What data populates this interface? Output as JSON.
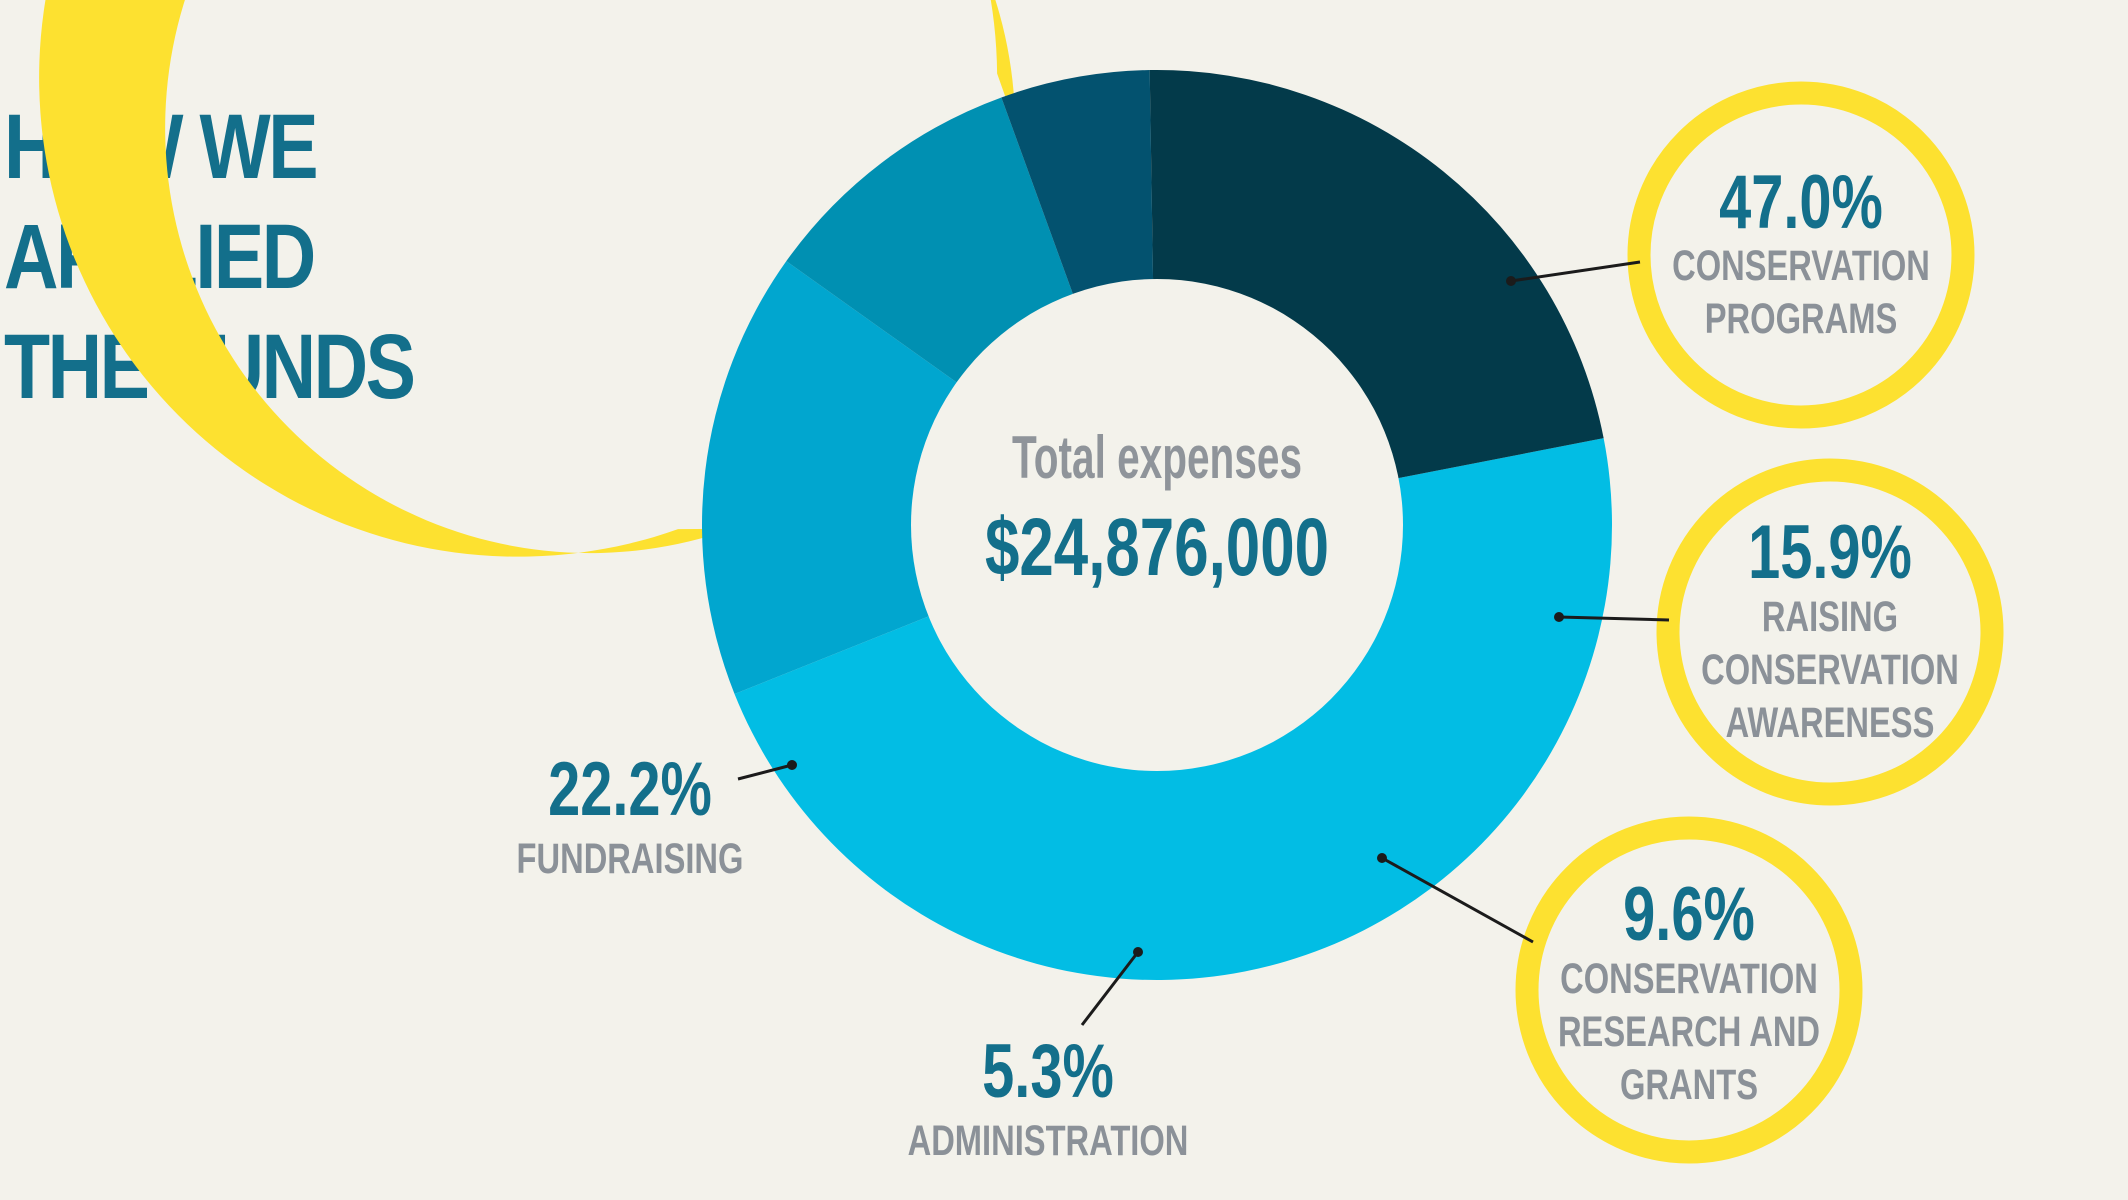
{
  "title_lines": [
    "HOW WE",
    "APPLIED",
    "THE FUNDS"
  ],
  "center": {
    "label": "Total expenses",
    "value": "$24,876,000"
  },
  "colors": {
    "background": "#f3f2eb",
    "accent_yellow": "#fde130",
    "title_blue": "#136f8b",
    "label_gray": "#8b9198"
  },
  "chart_data": {
    "type": "pie",
    "title": "HOW WE APPLIED THE FUNDS",
    "total": "$24,876,000",
    "unit": "%",
    "categories": [
      "CONSERVATION PROGRAMS",
      "RAISING CONSERVATION AWARENESS",
      "CONSERVATION RESEARCH AND GRANTS",
      "ADMINISTRATION",
      "FUNDRAISING"
    ],
    "values": [
      47.0,
      15.9,
      9.6,
      5.3,
      22.2
    ],
    "value_labels": [
      "47.0%",
      "15.9%",
      "9.6%",
      "5.3%",
      "22.2%"
    ],
    "category_lines": [
      [
        "CONSERVATION",
        "PROGRAMS"
      ],
      [
        "RAISING",
        "CONSERVATION",
        "AWARENESS"
      ],
      [
        "CONSERVATION",
        "RESEARCH AND",
        "GRANTS"
      ],
      [
        "ADMINISTRATION"
      ],
      [
        "FUNDRAISING"
      ]
    ],
    "slice_colors": [
      "#02bde4",
      "#01a6cf",
      "#0090b2",
      "#03526f",
      "#033a4a"
    ],
    "highlighted_in_circles": [
      "CONSERVATION PROGRAMS",
      "RAISING CONSERVATION AWARENESS",
      "CONSERVATION RESEARCH AND GRANTS"
    ]
  }
}
